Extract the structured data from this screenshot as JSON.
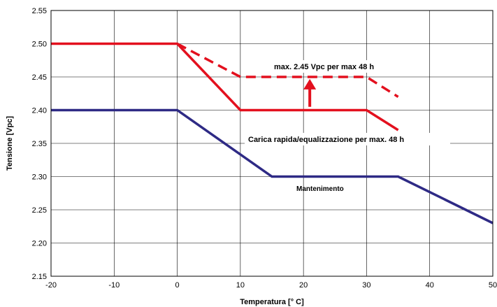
{
  "chart_data": {
    "type": "line",
    "xlabel": "Temperatura [° C]",
    "ylabel": "Tensione [Vpc]",
    "xlim": [
      -20,
      50
    ],
    "ylim": [
      2.15,
      2.55
    ],
    "x_ticks": [
      "-20",
      "-10",
      "0",
      "10",
      "20",
      "30",
      "40",
      "50"
    ],
    "y_ticks": [
      "2.15",
      "2.20",
      "2.25",
      "2.30",
      "2.35",
      "2.40",
      "2.45",
      "2.50",
      "2.55"
    ],
    "grid": true,
    "colors": {
      "fast_charge": "#e3101e",
      "equalization_max": "#e3101e",
      "float": "#2e2a85",
      "arrow": "#e3101e"
    },
    "series": [
      {
        "label": "Carica rapida/equalizzazione per max. 48 h",
        "style": "solid",
        "color": "#e3101e",
        "points": [
          [
            -20,
            2.5
          ],
          [
            0,
            2.5
          ],
          [
            10,
            2.4
          ],
          [
            30,
            2.4
          ],
          [
            35,
            2.37
          ]
        ]
      },
      {
        "label": "max. 2.45 Vpc per max 48 h",
        "style": "dashed",
        "color": "#e3101e",
        "points": [
          [
            0,
            2.5
          ],
          [
            10,
            2.45
          ],
          [
            30,
            2.45
          ],
          [
            35,
            2.42
          ]
        ]
      },
      {
        "label": "Mantenimento",
        "style": "solid",
        "color": "#2e2a85",
        "points": [
          [
            -20,
            2.4
          ],
          [
            0,
            2.4
          ],
          [
            15,
            2.3
          ],
          [
            35,
            2.3
          ],
          [
            50,
            2.23
          ]
        ]
      }
    ],
    "annotations": {
      "max_label": "max. 2.45 Vpc per max 48 h",
      "fast_label": "Carica rapida/equalizzazione per max. 48 h",
      "float_label": "Mantenimento"
    },
    "arrow": {
      "x": 21,
      "from": 2.405,
      "to": 2.447
    }
  }
}
